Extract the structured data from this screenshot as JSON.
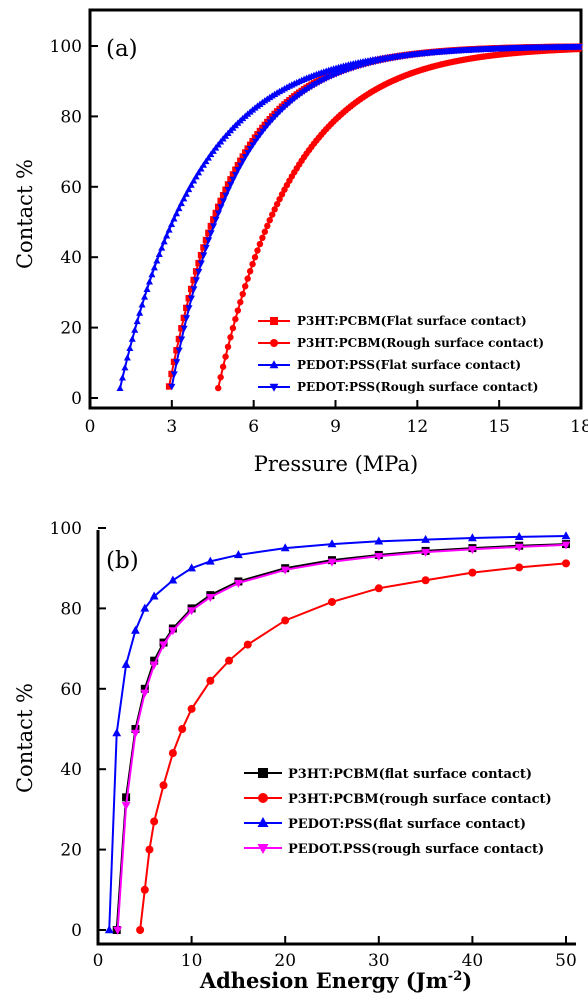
{
  "chart_data": [
    {
      "type": "line",
      "panel_label": "(a)",
      "xlabel": "Pressure (MPa)",
      "ylabel": "Contact %",
      "xlim": [
        0,
        18
      ],
      "ylim": [
        0,
        100
      ],
      "xticks": [
        0,
        3,
        6,
        9,
        12,
        15,
        18
      ],
      "yticks": [
        0,
        20,
        40,
        60,
        80,
        100
      ],
      "legend_position": "bottom-right",
      "series": [
        {
          "name": "P3HT:PCBM(Flat surface contact)",
          "color": "#ff0000",
          "marker": "square",
          "p0": 2.9,
          "tau": 2.4
        },
        {
          "name": "P3HT:PCBM(Rough surface contact)",
          "color": "#ff0000",
          "marker": "circle",
          "p0": 4.7,
          "tau": 2.8
        },
        {
          "name": "PEDOT:PSS(Flat surface contact)",
          "color": "#0000ff",
          "marker": "triangle-up",
          "p0": 1.1,
          "tau": 2.9
        },
        {
          "name": "PEDOT:PSS(Rough surface contact)",
          "color": "#0000ff",
          "marker": "triangle-down",
          "p0": 3.0,
          "tau": 2.4
        }
      ]
    },
    {
      "type": "line",
      "panel_label": "(b)",
      "xlabel": "Adhesion Energy (Jm",
      "xlabel_sup": "-2",
      "xlabel_tail": ")",
      "ylabel": "Contact %",
      "xlim": [
        0,
        50
      ],
      "ylim": [
        0,
        100
      ],
      "xticks": [
        0,
        10,
        20,
        30,
        40,
        50
      ],
      "yticks": [
        0,
        20,
        40,
        60,
        80,
        100
      ],
      "legend_position": "bottom-right",
      "series": [
        {
          "name": "P3HT:PCBM(flat surface contact)",
          "color": "#000000",
          "marker": "square",
          "x": [
            2,
            3,
            4,
            5,
            6,
            7,
            8,
            10,
            12,
            15,
            20,
            25,
            30,
            35,
            40,
            45,
            50
          ],
          "y": [
            0,
            33,
            50,
            60,
            67,
            71.5,
            75,
            80,
            83.3,
            86.7,
            90,
            92,
            93.3,
            94.3,
            95,
            95.6,
            96
          ]
        },
        {
          "name": "P3HT:PCBM(rough surface contact)",
          "color": "#ff0000",
          "marker": "circle",
          "x": [
            4.5,
            5,
            5.5,
            6,
            7,
            8,
            9,
            10,
            12,
            14,
            16,
            20,
            25,
            30,
            35,
            40,
            45,
            50
          ],
          "y": [
            0,
            10,
            20,
            27,
            36,
            44,
            50,
            55,
            62,
            67,
            71,
            77,
            81.6,
            85,
            87,
            88.9,
            90.2,
            91.2
          ]
        },
        {
          "name": "PEDOT:PSS(flat surface contact)",
          "color": "#0000ff",
          "marker": "triangle-up",
          "x": [
            1.2,
            2,
            3,
            4,
            5,
            6,
            8,
            10,
            12,
            15,
            20,
            25,
            30,
            35,
            40,
            45,
            50
          ],
          "y": [
            0,
            49,
            66,
            74.5,
            80,
            83,
            87,
            90,
            91.7,
            93.3,
            95,
            96,
            96.7,
            97.1,
            97.5,
            97.8,
            98
          ]
        },
        {
          "name": "PEDOT.PSS(rough surface contact)",
          "color": "#ff00ff",
          "marker": "triangle-down",
          "x": [
            2.1,
            3,
            4,
            5,
            6,
            7,
            8,
            10,
            12,
            15,
            20,
            25,
            30,
            35,
            40,
            45,
            50
          ],
          "y": [
            0,
            31,
            49,
            59,
            66,
            71,
            74.5,
            79.5,
            82.8,
            86.3,
            89.6,
            91.6,
            93,
            94,
            94.7,
            95.3,
            95.8
          ]
        }
      ]
    }
  ]
}
